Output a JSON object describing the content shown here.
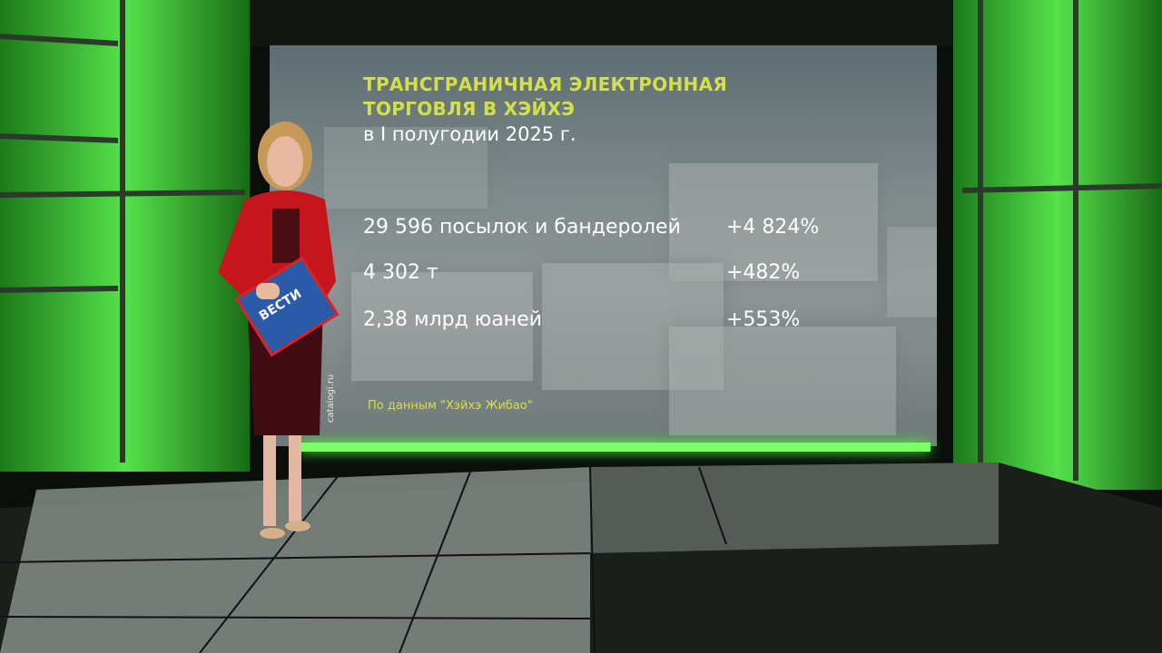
{
  "screen": {
    "title_lines": [
      "ТРАНСГРАНИЧНАЯ ЭЛЕКТРОННАЯ",
      "ТОРГОВЛЯ В ХЭЙХЭ"
    ],
    "subtitle": "в I полугодии 2025 г.",
    "rows": [
      {
        "label": "29 596 посылок и бандеролей",
        "change": "+4 824%"
      },
      {
        "label": "4 302 т",
        "change": "+482%"
      },
      {
        "label": "2,38 млрд юаней",
        "change": "+553%"
      }
    ],
    "source": "По данным \"Хэйхэ Жибао\"",
    "watermark": "catalogi.ru"
  },
  "presenter": {
    "folder_logo": "ВЕСТИ"
  }
}
